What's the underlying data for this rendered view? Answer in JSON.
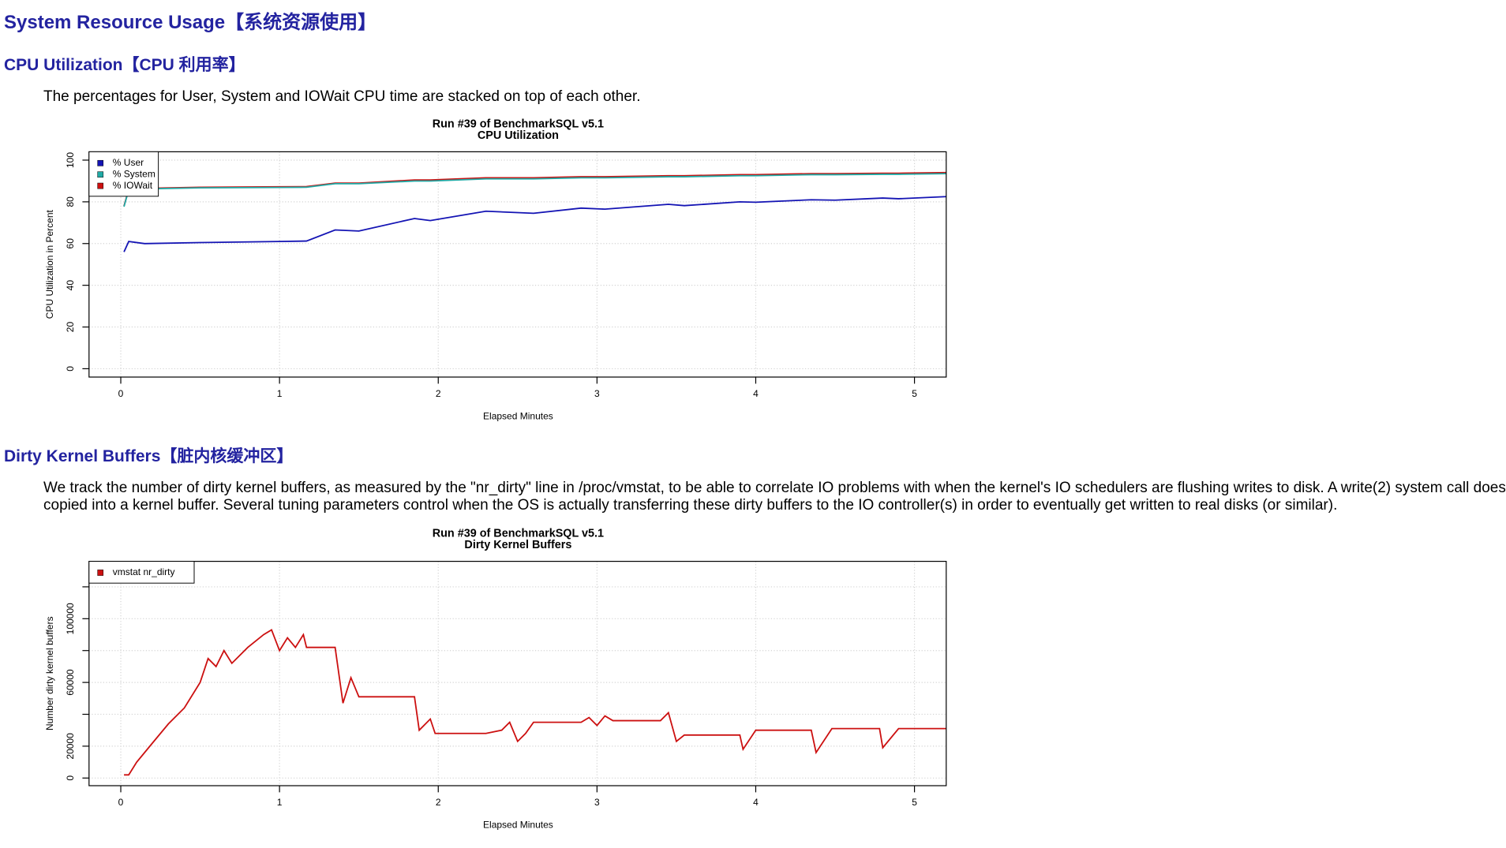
{
  "header": {
    "title": "System Resource Usage【系统资源使用】"
  },
  "sections": [
    {
      "heading": "CPU Utilization【CPU 利用率】",
      "paragraph": [
        "The percentages for User, System and IOWait CPU time are stacked on top of each other."
      ]
    },
    {
      "heading": "Dirty Kernel Buffers【脏内核缓冲区】",
      "paragraph": [
        "We track the number of dirty kernel buffers, as measured by the \"nr_dirty\" line in /proc/vmstat, to be able to correlate IO problems with when the kernel's IO schedulers are flushing writes to disk. A write(2) system call does",
        "copied into a kernel buffer. Several tuning parameters control when the OS is actually transferring these dirty buffers to the IO controller(s) in order to eventually get written to real disks (or similar)."
      ]
    }
  ],
  "chart_data": [
    {
      "type": "line",
      "stacked": true,
      "title": "Run #39 of BenchmarkSQL v5.1",
      "subtitle": "CPU Utilization",
      "x_label": "Elapsed Minutes",
      "y_label": "CPU Utilization in Percent",
      "x": [
        0.02,
        0.05,
        0.15,
        0.5,
        1.0,
        1.17,
        1.35,
        1.5,
        1.85,
        1.95,
        2.3,
        2.6,
        2.9,
        3.05,
        3.45,
        3.55,
        3.9,
        4.0,
        4.35,
        4.5,
        4.8,
        4.9,
        5.2
      ],
      "series": [
        {
          "name": "% User",
          "color": "#1414b4",
          "values": [
            56,
            61,
            60,
            60.5,
            61,
            61.2,
            66.5,
            66,
            72,
            71,
            75.5,
            74.5,
            77,
            76.5,
            78.8,
            78.2,
            80,
            79.8,
            81,
            80.8,
            81.8,
            81.5,
            82.5
          ]
        },
        {
          "name": "% System",
          "color": "#20aaa6",
          "values": [
            21.7,
            24.7,
            26.2,
            26.2,
            25.9,
            25.8,
            22.2,
            22.7,
            18,
            19,
            15.5,
            16.5,
            14.5,
            15,
            13.2,
            13.8,
            12.5,
            12.7,
            12,
            12.2,
            11.4,
            11.7,
            11
          ]
        },
        {
          "name": "% IOWait",
          "color": "#cc1010",
          "values": [
            0.3,
            0.3,
            0.3,
            0.3,
            0.3,
            0.3,
            0.3,
            0.3,
            0.5,
            0.5,
            0.5,
            0.5,
            0.5,
            0.5,
            0.5,
            0.5,
            0.5,
            0.5,
            0.5,
            0.5,
            0.5,
            0.5,
            0.5
          ]
        }
      ],
      "xlim": [
        -0.2,
        5.2
      ],
      "xticks": [
        0,
        1,
        2,
        3,
        4,
        5
      ],
      "ylim": [
        -4,
        104
      ],
      "yticks": [
        0,
        20,
        40,
        60,
        80,
        100
      ],
      "grid": true,
      "legend": "topleft"
    },
    {
      "type": "line",
      "stacked": false,
      "title": "Run #39 of BenchmarkSQL v5.1",
      "subtitle": "Dirty Kernel Buffers",
      "x_label": "Elapsed Minutes",
      "y_label": "Number dirty kernel buffers",
      "x": [
        0.02,
        0.05,
        0.1,
        0.2,
        0.3,
        0.4,
        0.5,
        0.55,
        0.6,
        0.65,
        0.7,
        0.8,
        0.9,
        0.95,
        1.0,
        1.05,
        1.1,
        1.15,
        1.17,
        1.35,
        1.4,
        1.45,
        1.5,
        1.85,
        1.88,
        1.95,
        1.98,
        2.3,
        2.4,
        2.45,
        2.5,
        2.55,
        2.6,
        2.9,
        2.95,
        3.0,
        3.05,
        3.1,
        3.4,
        3.45,
        3.5,
        3.55,
        3.9,
        3.92,
        4.0,
        4.35,
        4.38,
        4.48,
        4.78,
        4.8,
        4.9,
        5.2
      ],
      "series": [
        {
          "name": "vmstat nr_dirty",
          "color": "#cc1010",
          "values": [
            2000,
            2000,
            10000,
            22000,
            34000,
            44000,
            60000,
            75000,
            70000,
            80000,
            72000,
            82000,
            90000,
            93000,
            80000,
            88000,
            82000,
            90000,
            82000,
            82000,
            47000,
            63000,
            51000,
            51000,
            30000,
            37000,
            28000,
            28000,
            30000,
            35000,
            23000,
            28000,
            35000,
            35000,
            38000,
            33000,
            39000,
            36000,
            36000,
            41000,
            23000,
            27000,
            27000,
            18000,
            30000,
            30000,
            16000,
            31000,
            31000,
            19000,
            31000,
            31000
          ]
        }
      ],
      "xlim": [
        -0.2,
        5.2
      ],
      "xticks": [
        0,
        1,
        2,
        3,
        4,
        5
      ],
      "ylim": [
        -4800,
        136000
      ],
      "yticks": [
        0,
        20000,
        {
          "value": 40000,
          "label": null
        },
        60000,
        {
          "value": 80000,
          "label": null
        },
        100000,
        {
          "value": 120000,
          "label": null
        }
      ],
      "grid": true,
      "legend": "topleft"
    }
  ]
}
